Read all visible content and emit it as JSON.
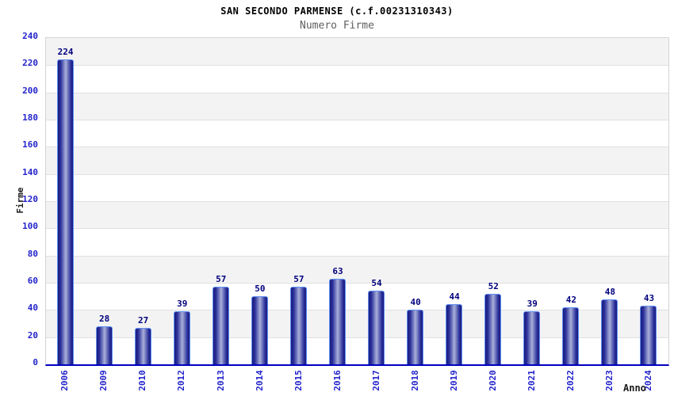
{
  "chart": {
    "title": "SAN SECONDO PARMENSE (c.f.00231310343)",
    "subtitle": "Numero Firme",
    "ylabel": "Firme",
    "xlabel": "Anno"
  },
  "chart_data": {
    "type": "bar",
    "title": "SAN SECONDO PARMENSE (c.f.00231310343)",
    "subtitle": "Numero Firme",
    "xlabel": "Anno",
    "ylabel": "Firme",
    "categories": [
      "2006",
      "2009",
      "2010",
      "2012",
      "2013",
      "2014",
      "2015",
      "2016",
      "2017",
      "2018",
      "2019",
      "2020",
      "2021",
      "2022",
      "2023",
      "2024"
    ],
    "values": [
      224,
      28,
      27,
      39,
      57,
      50,
      57,
      63,
      54,
      40,
      44,
      52,
      39,
      42,
      48,
      43
    ],
    "ylim": [
      0,
      240
    ],
    "ytick_step": 20,
    "grid": true,
    "legend": "none",
    "bar_value_labels": true,
    "colors": {
      "bar_dark": "#1b1b7e",
      "bar_mid": "#2a2f9a",
      "bar_light": "#a9b0d9",
      "bar_border": "#5e8ff2",
      "tick_label": "#2323cc",
      "value_label": "#00007d",
      "band_gray": "#f3f3f3",
      "band_white": "#ffffff",
      "gridline": "#e0e0e0",
      "plot_border": "#d4d4d4",
      "axis_line": "#0000bf"
    }
  }
}
